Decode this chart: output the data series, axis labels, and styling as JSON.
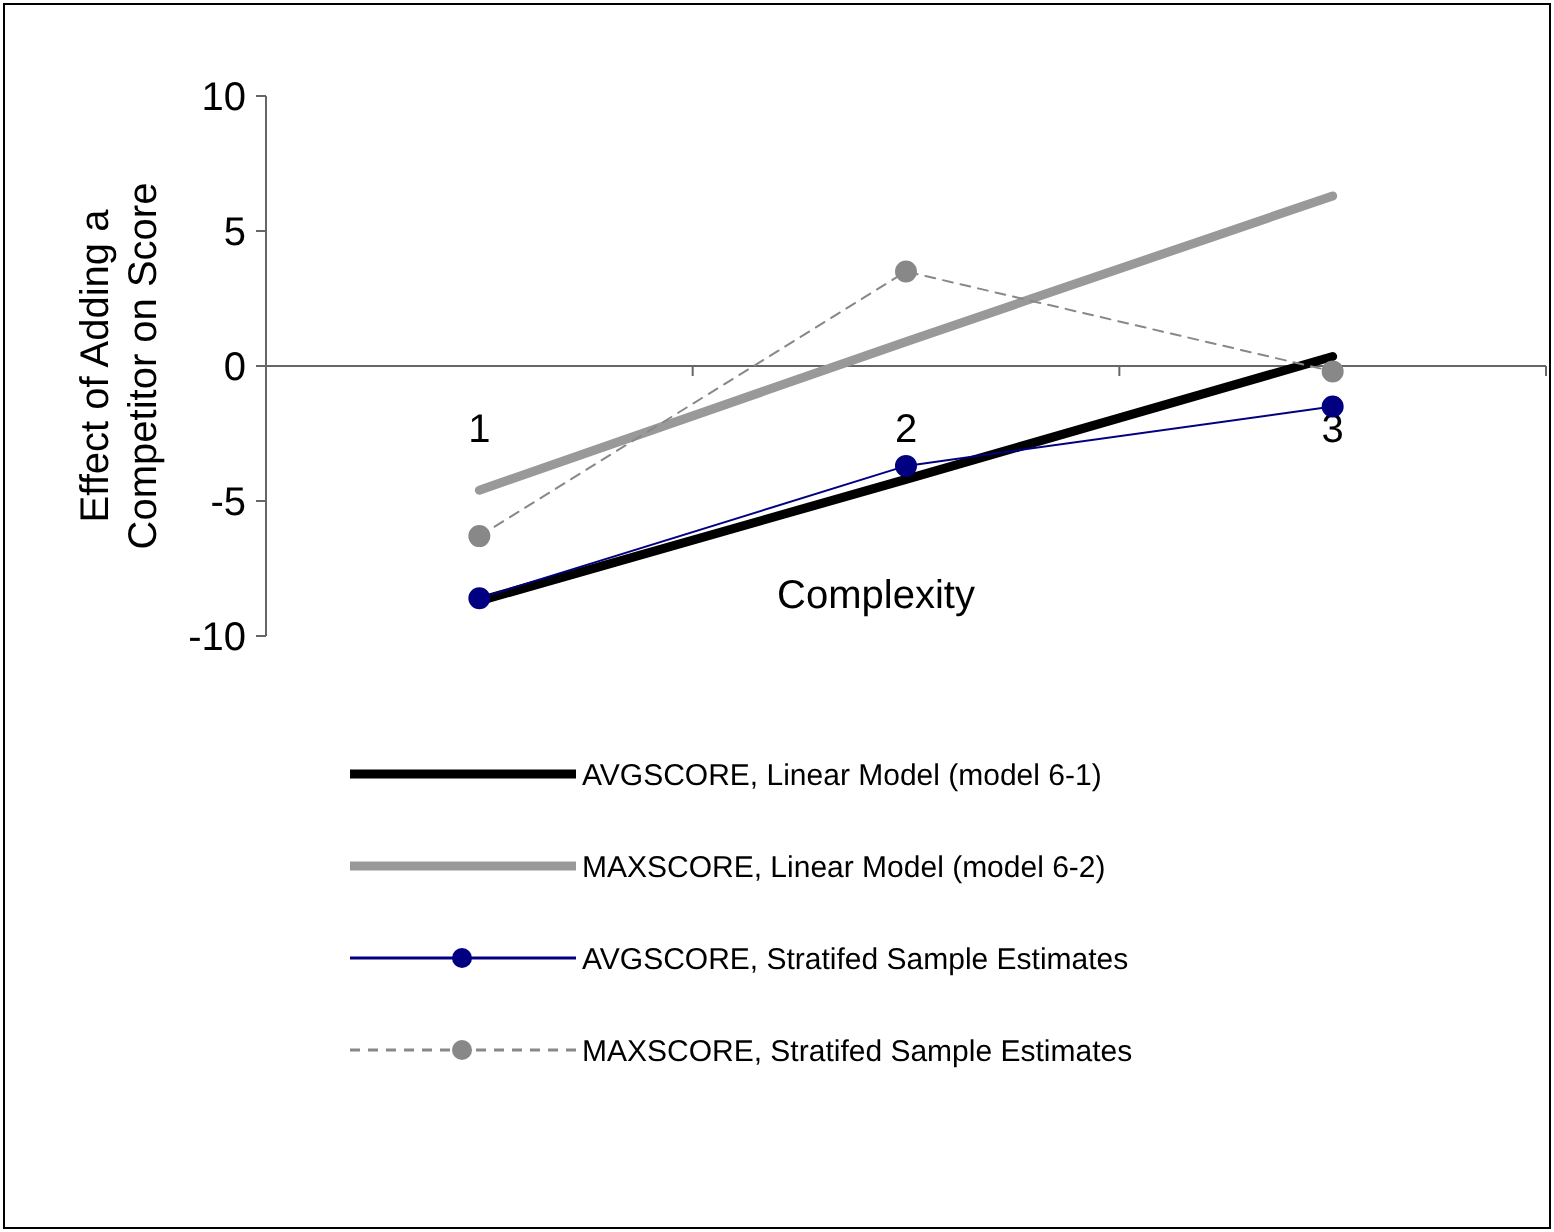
{
  "chart_data": {
    "type": "line",
    "xlabel": "Complexity",
    "ylabel": "Effect of Adding a Competitor on Score",
    "categories": [
      "1",
      "2",
      "3"
    ],
    "ylim": [
      -10,
      10
    ],
    "yticks": [
      -10,
      -5,
      0,
      5,
      10
    ],
    "grid": false,
    "legend": "bottom",
    "series": [
      {
        "name": "AVGSCORE, Linear Model (model 6-1)",
        "color": "#000000",
        "values": [
          -8.7,
          -4.2,
          0.35
        ],
        "marker": "none",
        "line_style": "solid"
      },
      {
        "name": "MAXSCORE, Linear Model (model 6-2)",
        "color": "#999999",
        "values": [
          -4.6,
          0.9,
          6.3
        ],
        "marker": "none",
        "line_style": "solid"
      },
      {
        "name": "AVGSCORE, Stratifed Sample Estimates",
        "color": "#000080",
        "values": [
          -8.6,
          -3.7,
          -1.5
        ],
        "marker": "circle",
        "line_style": "solid"
      },
      {
        "name": "MAXSCORE, Stratifed Sample Estimates",
        "color": "#888888",
        "values": [
          -6.3,
          3.5,
          -0.2
        ],
        "marker": "circle",
        "line_style": "dashed"
      }
    ]
  }
}
